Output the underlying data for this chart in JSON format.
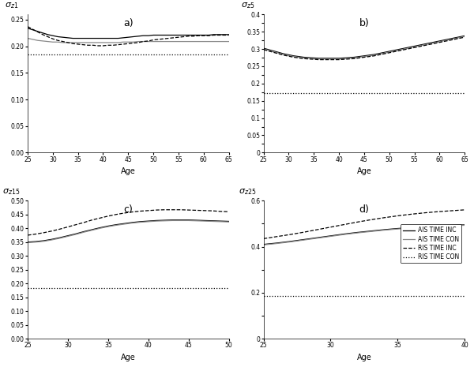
{
  "subplots": [
    {
      "label": "a)",
      "ylabel": "$\\sigma_{z1}$",
      "xlabel": "Age",
      "xlim": [
        25,
        65
      ],
      "ylim": [
        0,
        0.26
      ],
      "yticks": [
        0,
        0.05,
        0.1,
        0.15,
        0.2,
        0.25
      ],
      "xticks": [
        25,
        30,
        35,
        40,
        45,
        50,
        55,
        60,
        65
      ],
      "x": [
        25,
        26,
        27,
        28,
        29,
        30,
        31,
        32,
        33,
        34,
        35,
        36,
        37,
        38,
        39,
        40,
        41,
        42,
        43,
        44,
        45,
        46,
        47,
        48,
        49,
        50,
        51,
        52,
        53,
        54,
        55,
        56,
        57,
        58,
        59,
        60,
        61,
        62,
        63,
        64,
        65
      ],
      "lines": {
        "ais_inc": [
          0.234,
          0.231,
          0.228,
          0.225,
          0.222,
          0.22,
          0.218,
          0.217,
          0.216,
          0.215,
          0.215,
          0.215,
          0.215,
          0.215,
          0.215,
          0.215,
          0.215,
          0.215,
          0.215,
          0.216,
          0.217,
          0.218,
          0.219,
          0.22,
          0.22,
          0.221,
          0.221,
          0.221,
          0.221,
          0.221,
          0.221,
          0.221,
          0.221,
          0.221,
          0.221,
          0.221,
          0.221,
          0.222,
          0.222,
          0.222,
          0.222
        ],
        "ais_con": [
          0.215,
          0.213,
          0.211,
          0.21,
          0.209,
          0.208,
          0.208,
          0.207,
          0.207,
          0.207,
          0.207,
          0.207,
          0.207,
          0.207,
          0.207,
          0.207,
          0.207,
          0.207,
          0.207,
          0.208,
          0.208,
          0.208,
          0.209,
          0.209,
          0.209,
          0.209,
          0.209,
          0.209,
          0.209,
          0.209,
          0.209,
          0.209,
          0.209,
          0.209,
          0.209,
          0.209,
          0.209,
          0.209,
          0.209,
          0.209,
          0.209
        ],
        "ris_inc": [
          0.237,
          0.232,
          0.227,
          0.222,
          0.218,
          0.214,
          0.211,
          0.209,
          0.207,
          0.205,
          0.204,
          0.203,
          0.202,
          0.202,
          0.201,
          0.201,
          0.202,
          0.202,
          0.203,
          0.204,
          0.205,
          0.206,
          0.207,
          0.209,
          0.21,
          0.212,
          0.213,
          0.214,
          0.215,
          0.216,
          0.217,
          0.218,
          0.219,
          0.219,
          0.22,
          0.22,
          0.22,
          0.221,
          0.221,
          0.221,
          0.221
        ],
        "ris_con": [
          0.185,
          0.185,
          0.185,
          0.185,
          0.185,
          0.185,
          0.185,
          0.185,
          0.185,
          0.185,
          0.185,
          0.185,
          0.185,
          0.185,
          0.185,
          0.185,
          0.185,
          0.185,
          0.185,
          0.185,
          0.185,
          0.185,
          0.185,
          0.185,
          0.185,
          0.185,
          0.185,
          0.185,
          0.185,
          0.185,
          0.185,
          0.185,
          0.185,
          0.185,
          0.185,
          0.185,
          0.185,
          0.185,
          0.185,
          0.185,
          0.185
        ]
      }
    },
    {
      "label": "b)",
      "ylabel": "$\\sigma_{z5}$",
      "xlabel": "Age",
      "xlim": [
        25,
        65
      ],
      "ylim": [
        0,
        0.4
      ],
      "yticks": [
        0,
        0.025,
        0.05,
        0.075,
        0.1,
        0.125,
        0.15,
        0.175,
        0.2,
        0.225,
        0.25,
        0.275,
        0.3,
        0.325,
        0.35,
        0.375,
        0.4
      ],
      "ytick_labels": [
        "0",
        "",
        "0.05",
        "",
        "0.1",
        "",
        "0.15",
        "",
        "0.2",
        "",
        "0.25",
        "",
        "0.3",
        "",
        "0.35",
        "",
        "0.4"
      ],
      "xticks": [
        25,
        30,
        35,
        40,
        45,
        50,
        55,
        60,
        65
      ],
      "x": [
        25,
        26,
        27,
        28,
        29,
        30,
        31,
        32,
        33,
        34,
        35,
        36,
        37,
        38,
        39,
        40,
        41,
        42,
        43,
        44,
        45,
        46,
        47,
        48,
        49,
        50,
        51,
        52,
        53,
        54,
        55,
        56,
        57,
        58,
        59,
        60,
        61,
        62,
        63,
        64,
        65
      ],
      "lines": {
        "ais_inc": [
          0.302,
          0.298,
          0.294,
          0.29,
          0.286,
          0.283,
          0.28,
          0.278,
          0.276,
          0.275,
          0.274,
          0.273,
          0.273,
          0.273,
          0.273,
          0.273,
          0.274,
          0.275,
          0.276,
          0.278,
          0.28,
          0.282,
          0.284,
          0.287,
          0.29,
          0.293,
          0.296,
          0.299,
          0.302,
          0.305,
          0.308,
          0.311,
          0.314,
          0.317,
          0.32,
          0.323,
          0.326,
          0.329,
          0.332,
          0.335,
          0.338
        ],
        "ais_con": [
          0.3,
          0.296,
          0.292,
          0.288,
          0.284,
          0.281,
          0.278,
          0.276,
          0.274,
          0.273,
          0.272,
          0.271,
          0.271,
          0.271,
          0.271,
          0.271,
          0.272,
          0.273,
          0.274,
          0.276,
          0.278,
          0.28,
          0.282,
          0.285,
          0.288,
          0.291,
          0.294,
          0.297,
          0.3,
          0.303,
          0.306,
          0.309,
          0.312,
          0.315,
          0.318,
          0.321,
          0.324,
          0.327,
          0.33,
          0.333,
          0.336
        ],
        "ris_inc": [
          0.298,
          0.294,
          0.29,
          0.286,
          0.282,
          0.279,
          0.276,
          0.274,
          0.272,
          0.271,
          0.27,
          0.269,
          0.269,
          0.269,
          0.269,
          0.269,
          0.27,
          0.271,
          0.272,
          0.274,
          0.276,
          0.278,
          0.28,
          0.283,
          0.286,
          0.289,
          0.292,
          0.295,
          0.298,
          0.301,
          0.304,
          0.307,
          0.31,
          0.313,
          0.316,
          0.319,
          0.322,
          0.325,
          0.328,
          0.331,
          0.334
        ],
        "ris_con": [
          0.172,
          0.172,
          0.172,
          0.172,
          0.172,
          0.172,
          0.172,
          0.172,
          0.172,
          0.172,
          0.172,
          0.172,
          0.172,
          0.172,
          0.172,
          0.172,
          0.172,
          0.172,
          0.172,
          0.172,
          0.172,
          0.172,
          0.172,
          0.172,
          0.172,
          0.172,
          0.172,
          0.172,
          0.172,
          0.172,
          0.172,
          0.172,
          0.172,
          0.172,
          0.172,
          0.172,
          0.172,
          0.172,
          0.172,
          0.172,
          0.172
        ]
      }
    },
    {
      "label": "c)",
      "ylabel": "$\\sigma_{z15}$",
      "xlabel": "Age",
      "xlim": [
        25,
        50
      ],
      "ylim": [
        0,
        0.5
      ],
      "yticks": [
        0,
        0.05,
        0.1,
        0.15,
        0.2,
        0.25,
        0.3,
        0.35,
        0.4,
        0.45,
        0.5
      ],
      "xticks": [
        25,
        30,
        35,
        40,
        45,
        50
      ],
      "x": [
        25,
        26,
        27,
        28,
        29,
        30,
        31,
        32,
        33,
        34,
        35,
        36,
        37,
        38,
        39,
        40,
        41,
        42,
        43,
        44,
        45,
        46,
        47,
        48,
        49,
        50
      ],
      "lines": {
        "ais_inc": [
          0.35,
          0.352,
          0.355,
          0.36,
          0.366,
          0.373,
          0.38,
          0.388,
          0.395,
          0.402,
          0.408,
          0.413,
          0.417,
          0.421,
          0.424,
          0.426,
          0.428,
          0.429,
          0.43,
          0.43,
          0.43,
          0.429,
          0.428,
          0.427,
          0.426,
          0.425
        ],
        "ais_con": [
          0.348,
          0.35,
          0.353,
          0.358,
          0.364,
          0.371,
          0.378,
          0.386,
          0.393,
          0.4,
          0.406,
          0.411,
          0.415,
          0.419,
          0.422,
          0.424,
          0.426,
          0.427,
          0.428,
          0.428,
          0.428,
          0.427,
          0.426,
          0.425,
          0.424,
          0.423
        ],
        "ris_inc": [
          0.375,
          0.379,
          0.384,
          0.39,
          0.397,
          0.405,
          0.413,
          0.421,
          0.43,
          0.437,
          0.444,
          0.45,
          0.455,
          0.459,
          0.462,
          0.464,
          0.466,
          0.467,
          0.467,
          0.467,
          0.466,
          0.465,
          0.464,
          0.463,
          0.461,
          0.46
        ],
        "ris_con": [
          0.183,
          0.183,
          0.183,
          0.183,
          0.183,
          0.183,
          0.183,
          0.183,
          0.183,
          0.183,
          0.183,
          0.183,
          0.183,
          0.183,
          0.183,
          0.183,
          0.183,
          0.183,
          0.183,
          0.183,
          0.183,
          0.183,
          0.183,
          0.183,
          0.183,
          0.183
        ]
      }
    },
    {
      "label": "d)",
      "ylabel": "$\\sigma_{z25}$",
      "xlabel": "Age",
      "xlim": [
        25,
        40
      ],
      "ylim": [
        0,
        0.6
      ],
      "yticks": [
        0,
        0.1,
        0.2,
        0.3,
        0.4,
        0.5,
        0.6
      ],
      "ytick_labels": [
        "0",
        "",
        "0.2",
        "",
        "0.4",
        "",
        "0.6"
      ],
      "xticks": [
        25,
        30,
        35,
        40
      ],
      "x": [
        25,
        26,
        27,
        28,
        29,
        30,
        31,
        32,
        33,
        34,
        35,
        36,
        37,
        38,
        39,
        40
      ],
      "lines": {
        "ais_inc": [
          0.41,
          0.416,
          0.423,
          0.431,
          0.439,
          0.447,
          0.455,
          0.462,
          0.468,
          0.474,
          0.479,
          0.483,
          0.487,
          0.49,
          0.493,
          0.495
        ],
        "ais_con": [
          0.408,
          0.414,
          0.421,
          0.429,
          0.437,
          0.445,
          0.453,
          0.46,
          0.466,
          0.472,
          0.477,
          0.481,
          0.485,
          0.488,
          0.491,
          0.493
        ],
        "ris_inc": [
          0.435,
          0.444,
          0.453,
          0.463,
          0.474,
          0.485,
          0.496,
          0.507,
          0.517,
          0.526,
          0.534,
          0.541,
          0.547,
          0.552,
          0.556,
          0.56
        ],
        "ris_con": [
          0.185,
          0.185,
          0.185,
          0.185,
          0.185,
          0.185,
          0.185,
          0.185,
          0.185,
          0.185,
          0.185,
          0.185,
          0.185,
          0.185,
          0.185,
          0.185
        ]
      }
    }
  ],
  "line_styles": {
    "ais_inc": {
      "color": "#000000",
      "linestyle": "-",
      "linewidth": 0.9,
      "label": "AIS TIME INC"
    },
    "ais_con": {
      "color": "#888888",
      "linestyle": "-",
      "linewidth": 0.9,
      "label": "AIS TIME CON"
    },
    "ris_inc": {
      "color": "#000000",
      "linestyle": "--",
      "linewidth": 0.9,
      "label": "RIS TIME INC"
    },
    "ris_con": {
      "color": "#000000",
      "linestyle": ":",
      "linewidth": 0.9,
      "label": "RIS TIME CON"
    }
  },
  "legend_subplot": 3,
  "title_fontsize": 9,
  "label_fontsize": 7,
  "tick_fontsize": 5.5,
  "ylabel_fontsize": 8
}
